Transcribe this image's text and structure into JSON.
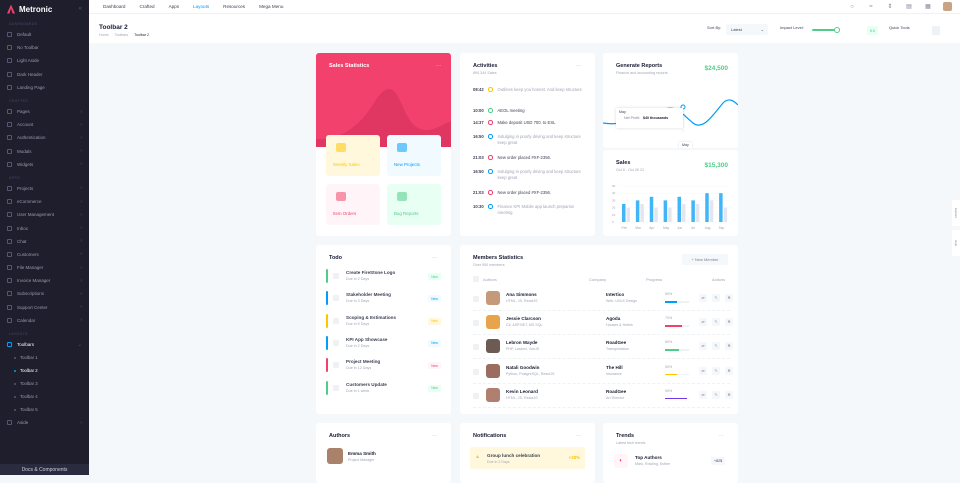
{
  "app": {
    "name": "Metronic",
    "footer_button": "Docs & Components"
  },
  "sidebar": {
    "sections": [
      {
        "title": "DASHBOARDS",
        "items": [
          {
            "label": "Default"
          },
          {
            "label": "No Toolbar"
          },
          {
            "label": "Light Aside"
          },
          {
            "label": "Dark Header"
          },
          {
            "label": "Landing Page"
          }
        ]
      },
      {
        "title": "CRAFTED",
        "items": [
          {
            "label": "Pages"
          },
          {
            "label": "Account"
          },
          {
            "label": "Authentication"
          },
          {
            "label": "Modals"
          },
          {
            "label": "Widgets"
          }
        ]
      },
      {
        "title": "APPS",
        "items": [
          {
            "label": "Projects"
          },
          {
            "label": "eCommerce"
          },
          {
            "label": "User Management"
          },
          {
            "label": "Inbox"
          },
          {
            "label": "Chat"
          },
          {
            "label": "Customers"
          },
          {
            "label": "File Manager"
          },
          {
            "label": "Invoice Manager"
          },
          {
            "label": "Subscriptions"
          },
          {
            "label": "Support Center"
          },
          {
            "label": "Calendar"
          }
        ]
      },
      {
        "title": "LAYOUTS",
        "items": [
          {
            "label": "Toolbars"
          }
        ]
      }
    ],
    "toolbars_sub": [
      "Toolbar 1",
      "Toolbar 2",
      "Toolbar 3",
      "Toolbar 4",
      "Toolbar 5"
    ],
    "after": {
      "label": "Aside"
    }
  },
  "header": {
    "nav": [
      "Dashboard",
      "Crafted",
      "Apps",
      "Layouts",
      "Resources",
      "Mega Menu"
    ],
    "active_nav": "Layouts"
  },
  "toolbar": {
    "title": "Toolbar 2",
    "breadcrumbs": [
      "Home",
      "Toolbars",
      "Toolbar 2"
    ],
    "sort_label": "Sort By:",
    "sort_value": "Latest",
    "impact_label": "Impact Level:",
    "impact_value": "5.0",
    "impact_fraction": 0.8,
    "quick_tools": "Quick Tools"
  },
  "sales_statistics": {
    "title": "Sales Statistics",
    "tiles": [
      {
        "label": "Weekly Sales",
        "bg": "#fff8dd",
        "fg": "#ffc700"
      },
      {
        "label": "New Projects",
        "bg": "#f1faff",
        "fg": "#009ef7"
      },
      {
        "label": "Item Orders",
        "bg": "#fff5f8",
        "fg": "#f1416c"
      },
      {
        "label": "Bug Reports",
        "bg": "#e8fff3",
        "fg": "#50cd89"
      }
    ]
  },
  "activities": {
    "title": "Activities",
    "subtitle": "890,344 Sales",
    "rows": [
      {
        "time": "08:42",
        "color": "#ffc700",
        "text": "Outlines keep you honest. And keep structure"
      },
      {
        "time": "10:00",
        "color": "#50cd89",
        "text": "AEOL meeting"
      },
      {
        "time": "14:37",
        "color": "#f1416c",
        "text": "Make deposit USD 700. to ESL"
      },
      {
        "time": "16:50",
        "color": "#009ef7",
        "text": "Indulging in poorly driving and keep structure keep great"
      },
      {
        "time": "21:03",
        "color": "#f1416c",
        "text": "New order placed #XF-2356."
      },
      {
        "time": "16:50",
        "color": "#009ef7",
        "text": "Indulging in poorly driving and keep structure keep great"
      },
      {
        "time": "21:03",
        "color": "#f1416c",
        "text": "New order placed #XF-2356."
      },
      {
        "time": "10:30",
        "color": "#009ef7",
        "text": "Finance KPI Mobile app launch preparion meeting"
      }
    ]
  },
  "generate_reports": {
    "title": "Generate Reports",
    "subtitle": "Finance and accounting reports",
    "value": "$24,500",
    "tooltip_month": "May",
    "tooltip_label": "Net Profit:",
    "tooltip_value": "$40 thousands",
    "axis_label": "May"
  },
  "sales": {
    "title": "Sales",
    "subtitle": "Oct 8 - Oct 26 21",
    "value": "$15,300"
  },
  "chart_data": {
    "type": "bar",
    "categories": [
      "Feb",
      "Mar",
      "Apr",
      "May",
      "Jun",
      "Jul",
      "Aug",
      "Sep"
    ],
    "series": [
      {
        "values": [
          25,
          30,
          35,
          30,
          35,
          30,
          40,
          40
        ]
      },
      {
        "values": [
          20,
          25,
          20,
          20,
          25,
          25,
          30,
          20
        ]
      }
    ],
    "yticks": [
      "50",
      "40",
      "30",
      "20",
      "10",
      "0"
    ],
    "ylim": [
      0,
      50
    ]
  },
  "todo": {
    "title": "Todo",
    "items": [
      {
        "title": "Create FireStone Logo",
        "due": "Due in 2 Days",
        "badge": "New",
        "bar": "#50cd89",
        "badge_bg": "#e8fff3",
        "badge_fg": "#50cd89"
      },
      {
        "title": "Stakeholder Meeting",
        "due": "Due in 3 Days",
        "badge": "New",
        "bar": "#009ef7",
        "badge_bg": "#f1faff",
        "badge_fg": "#009ef7"
      },
      {
        "title": "Scoping & Estimations",
        "due": "Due in 5 Days",
        "badge": "New",
        "bar": "#ffc700",
        "badge_bg": "#fff8dd",
        "badge_fg": "#ffc700"
      },
      {
        "title": "KPI App Showcase",
        "due": "Due in 2 Days",
        "badge": "New",
        "bar": "#009ef7",
        "badge_bg": "#f1faff",
        "badge_fg": "#009ef7"
      },
      {
        "title": "Project Meeting",
        "due": "Due in 12 Days",
        "badge": "New",
        "bar": "#f1416c",
        "badge_bg": "#fff5f8",
        "badge_fg": "#f1416c"
      },
      {
        "title": "Customers Update",
        "due": "Due in 1 week",
        "badge": "New",
        "bar": "#50cd89",
        "badge_bg": "#e8fff3",
        "badge_fg": "#50cd89"
      }
    ]
  },
  "members": {
    "title": "Members Statistics",
    "subtitle": "Over 500 members",
    "new_button": "New Member",
    "headers": [
      "Authors",
      "Company",
      "Progress",
      "Actions"
    ],
    "rows": [
      {
        "name": "Ana Simmons",
        "skills": "HTML, JS, ReactJS",
        "company": "Intertico",
        "desc": "Web, UI/UX Design",
        "progress": 50,
        "color": "#009ef7",
        "avatar": "#c49a7a"
      },
      {
        "name": "Jessie Clarcson",
        "skills": "C#, ASP.NET, MS SQL",
        "company": "Agoda",
        "desc": "Houses & Hotels",
        "progress": 70,
        "color": "#f1416c",
        "avatar": "#e8a44c"
      },
      {
        "name": "Lebron Wayde",
        "skills": "PHP, Laravel, VueJS",
        "company": "RoadGee",
        "desc": "Transportation",
        "progress": 60,
        "color": "#50cd89",
        "avatar": "#6d5a52"
      },
      {
        "name": "Natali Goodwin",
        "skills": "Python, PostgreSQL, ReactJS",
        "company": "The Hill",
        "desc": "Insurance",
        "progress": 50,
        "color": "#ffc700",
        "avatar": "#9c6d5e"
      },
      {
        "name": "Kevin Leonard",
        "skills": "HTML, JS, ReactJS",
        "company": "RoadGee",
        "desc": "Art Director",
        "progress": 90,
        "color": "#7239ea",
        "avatar": "#b07f70"
      }
    ]
  },
  "authors": {
    "title": "Authors",
    "name": "Emma Smith",
    "role": "Project Manager"
  },
  "notifications": {
    "title": "Notifications",
    "item": "Group lunch celebration",
    "due": "Due in 2 Days",
    "value": "+28%"
  },
  "trends": {
    "title": "Trends",
    "subtitle": "Latest tech trends",
    "item": "Top Authors",
    "item_sub": "Mark, Rowling, Esther",
    "value": "+82$"
  },
  "side_tabs": [
    "Explore",
    "Help"
  ]
}
